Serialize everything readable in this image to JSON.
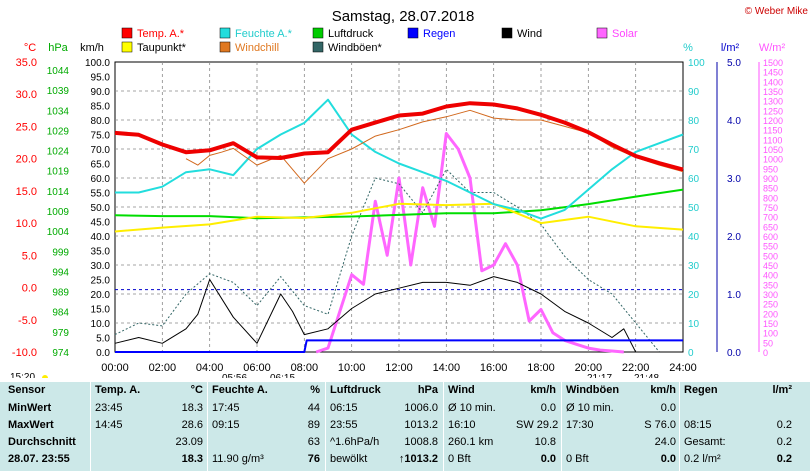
{
  "header": {
    "title": "Samstag, 28.07.2018",
    "copyright": "© Weber Mike"
  },
  "legend": [
    {
      "label": "Temp. A.*",
      "color": "#ff0000"
    },
    {
      "label": "Feuchte A.*",
      "color": "#22dddd"
    },
    {
      "label": "Luftdruck",
      "color": "#00cc00"
    },
    {
      "label": "Regen",
      "color": "#0000ff"
    },
    {
      "label": "Wind",
      "color": "#000000"
    },
    {
      "label": "Solar",
      "color": "#ff66ff"
    },
    {
      "label": "Taupunkt*",
      "color": "#ffff00"
    },
    {
      "label": "Windchill",
      "color": "#e07820"
    },
    {
      "label": "Windböen*",
      "color": "#336666"
    }
  ],
  "axes_labels": {
    "temp": "°C",
    "pressure": "hPa",
    "wind": "km/h",
    "humidity": "%",
    "rain": "l/m²",
    "solar": "W/m²"
  },
  "axes": {
    "temp_ticks": [
      "35.0",
      "30.0",
      "25.0",
      "20.0",
      "15.0",
      "10.0",
      "5.0",
      "0.0",
      "-5.0",
      "-10.0"
    ],
    "pressure_ticks": [
      "1044",
      "1039",
      "1034",
      "1029",
      "1024",
      "1019",
      "1014",
      "1009",
      "1004",
      "999",
      "994",
      "989",
      "984",
      "979",
      "974"
    ],
    "wind_ticks": [
      "100.0",
      "95.0",
      "90.0",
      "85.0",
      "80.0",
      "75.0",
      "70.0",
      "65.0",
      "60.0",
      "55.0",
      "50.0",
      "45.0",
      "40.0",
      "35.0",
      "30.0",
      "25.0",
      "20.0",
      "15.0",
      "10.0",
      "5.0",
      "0.0"
    ],
    "humidity_ticks": [
      "100",
      "90",
      "80",
      "70",
      "60",
      "50",
      "40",
      "30",
      "20",
      "10",
      "0"
    ],
    "rain_ticks": [
      "5.0",
      "4.0",
      "3.0",
      "2.0",
      "1.0",
      "0.0"
    ],
    "solar_ticks": [
      "1500",
      "1450",
      "1400",
      "1350",
      "1300",
      "1250",
      "1200",
      "1150",
      "1100",
      "1050",
      "1000",
      "950",
      "900",
      "850",
      "800",
      "750",
      "700",
      "650",
      "600",
      "550",
      "500",
      "450",
      "400",
      "350",
      "300",
      "250",
      "200",
      "150",
      "100",
      "50",
      "0"
    ],
    "x_ticks": [
      "00:00",
      "02:00",
      "04:00",
      "06:00",
      "08:00",
      "10:00",
      "12:00",
      "14:00",
      "16:00",
      "18:00",
      "20:00",
      "22:00",
      "24:00"
    ]
  },
  "sun": {
    "sunrise": "05:56",
    "sunset": "21:17",
    "moonrise": "06:15",
    "moonset": "21:48",
    "time_label": "15:20"
  },
  "chart_data": {
    "type": "line",
    "x_unit": "hours",
    "x_range": [
      0,
      24
    ],
    "wind_range": [
      0,
      100
    ],
    "series": [
      {
        "name": "Temp. A.*",
        "axis": "°C",
        "x": [
          0,
          1,
          2,
          3,
          4,
          5,
          6,
          7,
          8,
          9,
          10,
          11,
          12,
          13,
          14,
          15,
          16,
          17,
          18,
          19,
          20,
          21,
          22,
          23,
          24
        ],
        "values": [
          24.0,
          23.7,
          22.2,
          21.0,
          21.3,
          22.4,
          20.2,
          20.1,
          20.8,
          21.0,
          24.5,
          25.6,
          26.7,
          27.0,
          28.1,
          28.6,
          28.4,
          27.8,
          26.8,
          25.6,
          24.1,
          22.2,
          20.4,
          19.3,
          18.3
        ]
      },
      {
        "name": "Feuchte A.*",
        "axis": "%",
        "x": [
          0,
          1,
          2,
          3,
          4,
          5,
          6,
          7,
          8,
          9,
          10,
          11,
          12,
          13,
          14,
          15,
          16,
          17,
          18,
          19,
          20,
          21,
          22,
          23,
          24
        ],
        "values": [
          55,
          55,
          57,
          62,
          63,
          61,
          70,
          75,
          79,
          87,
          75,
          69,
          65,
          62,
          59,
          55,
          51,
          49,
          46,
          49,
          56,
          63,
          69,
          72,
          75
        ]
      },
      {
        "name": "Taupunkt*",
        "axis": "°C",
        "x": [
          0,
          2,
          4,
          6,
          8,
          10,
          12,
          14,
          16,
          18,
          20,
          22,
          24
        ],
        "values": [
          8.7,
          9.3,
          9.8,
          11.0,
          10.8,
          11.6,
          13.0,
          12.8,
          13.0,
          10.0,
          11.0,
          9.5,
          9.0
        ]
      },
      {
        "name": "Windchill",
        "axis": "°C",
        "x": [
          3,
          3.5,
          4,
          4.5,
          5,
          6,
          7,
          8,
          9,
          10,
          11,
          12,
          13,
          14,
          15,
          16,
          17,
          18,
          19,
          20,
          21,
          22,
          23,
          24
        ],
        "values": [
          20.0,
          19.0,
          20.5,
          21.0,
          21.6,
          19.0,
          20.5,
          16.2,
          20.0,
          21.5,
          23.5,
          24.5,
          25.7,
          26.5,
          27.5,
          26.3,
          26.0,
          26.0,
          25.0,
          24.0,
          21.8,
          20.2,
          19.0,
          18.0
        ]
      },
      {
        "name": "Luftdruck",
        "axis": "hPa",
        "x": [
          0,
          2,
          4,
          6,
          8,
          10,
          12,
          14,
          16,
          18,
          20,
          22,
          24
        ],
        "values": [
          1007.0,
          1006.8,
          1006.8,
          1006.3,
          1006.5,
          1006.7,
          1007.1,
          1007.5,
          1007.5,
          1008.2,
          1009.7,
          1011.5,
          1013.2
        ]
      },
      {
        "name": "Wind",
        "axis": "km/h",
        "x": [
          0,
          1,
          2,
          3,
          3.5,
          4,
          5,
          6,
          7,
          7.5,
          8,
          9,
          10,
          11,
          12,
          13,
          14,
          15,
          16,
          17,
          18,
          19,
          20,
          21,
          21.5,
          22,
          23,
          24
        ],
        "values": [
          3,
          5,
          3,
          8,
          13,
          25,
          12,
          3,
          20,
          14,
          6,
          8,
          15,
          20,
          22,
          24,
          24,
          23,
          26,
          24,
          20,
          14,
          10,
          5,
          8,
          0,
          0,
          0
        ]
      },
      {
        "name": "Windböen*",
        "axis": "km/h",
        "x": [
          0,
          1,
          2,
          3,
          4,
          5,
          6,
          7,
          8,
          9,
          10,
          11,
          12,
          13,
          14,
          15,
          16,
          17,
          18,
          19,
          20,
          21,
          22,
          23,
          24
        ],
        "values": [
          6,
          10,
          9,
          20,
          27,
          24,
          16,
          26,
          16,
          13,
          40,
          60,
          58,
          48,
          63,
          55,
          55,
          50,
          44,
          33,
          25,
          20,
          10,
          0,
          0
        ]
      },
      {
        "name": "Solar",
        "axis": "W/m²",
        "x": [
          8.5,
          9,
          10,
          10.5,
          11,
          11.5,
          12,
          12.5,
          13,
          13.5,
          14,
          14.5,
          15,
          15.5,
          16,
          16.5,
          17,
          17.5,
          18,
          18.5,
          19,
          19.5,
          20,
          20.5,
          21,
          21.5
        ],
        "values": [
          0,
          20,
          400,
          350,
          780,
          500,
          900,
          450,
          850,
          650,
          1130,
          1050,
          900,
          420,
          450,
          560,
          450,
          160,
          220,
          100,
          60,
          40,
          20,
          10,
          5,
          0
        ]
      },
      {
        "name": "Regen",
        "axis": "l/m²",
        "x": [
          0,
          8,
          8.1,
          24
        ],
        "values": [
          0,
          0,
          0.2,
          0.2
        ]
      }
    ],
    "gridlines": "dashed",
    "dashed_reference_line_wind": 21.5
  },
  "table": {
    "headers": [
      "Sensor",
      "Temp. A.",
      "°C",
      "Feuchte A.",
      "%",
      "Luftdruck",
      "hPa",
      "Wind",
      "km/h",
      "Windböen",
      "km/h",
      "Regen",
      "l/m²"
    ],
    "rows": [
      {
        "label": "MinWert",
        "cells": [
          "23:45",
          "18.3",
          "17:45",
          "44",
          "06:15",
          "1006.0",
          "Ø 10 min.",
          "0.0",
          "Ø 10 min.",
          "0.0",
          "",
          ""
        ]
      },
      {
        "label": "MaxWert",
        "cells": [
          "14:45",
          "28.6",
          "09:15",
          "89",
          "23:55",
          "1013.2",
          "16:10",
          "SW 29.2",
          "17:30",
          "S 76.0",
          "08:15",
          "0.2"
        ]
      },
      {
        "label": "Durchschnitt",
        "cells": [
          "",
          "23.09",
          "",
          "63",
          "^1.6hPa/h",
          "1008.8",
          "260.1 km",
          "10.8",
          "",
          "24.0",
          "Gesamt:",
          "0.2"
        ]
      },
      {
        "label": "28.07. 23:55",
        "cells": [
          "",
          "18.3",
          "11.90 g/m³",
          "76",
          "bewölkt",
          "↑1013.2",
          "0 Bft",
          "0.0",
          "0 Bft",
          "0.0",
          "0.2 l/m²",
          "0.2"
        ]
      }
    ]
  }
}
